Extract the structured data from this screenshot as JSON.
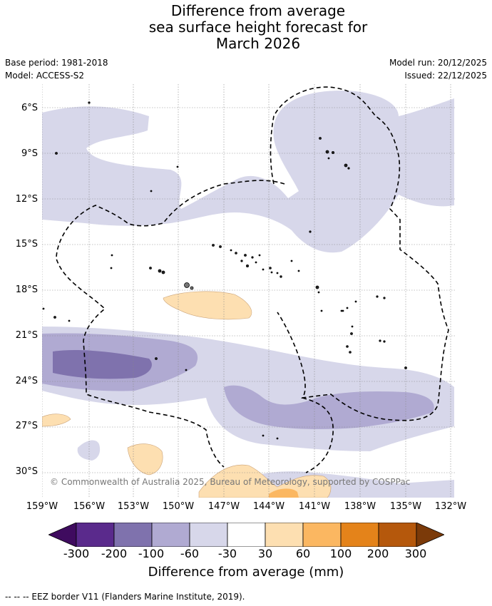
{
  "title": {
    "line1": "Difference from average",
    "line2": "sea surface height forecast for",
    "line3": "March 2026"
  },
  "meta": {
    "base_period": "Base period: 1981-2018",
    "model": "Model: ACCESS-S2",
    "model_run": "Model run: 20/12/2025",
    "issued": "Issued: 22/12/2025"
  },
  "map": {
    "lat_ticks": [
      "6°S",
      "9°S",
      "12°S",
      "15°S",
      "18°S",
      "21°S",
      "24°S",
      "27°S",
      "30°S"
    ],
    "lon_ticks": [
      "159°W",
      "156°W",
      "153°W",
      "150°W",
      "147°W",
      "144°W",
      "141°W",
      "138°W",
      "135°W",
      "132°W"
    ],
    "copyright": "© Commonwealth of Australia 2025, Bureau of Meteorology, supported by COSPPac"
  },
  "colorbar": {
    "title": "Difference from average (mm)",
    "labels": [
      "-300",
      "-200",
      "-100",
      "-60",
      "-30",
      "30",
      "60",
      "100",
      "200",
      "300"
    ],
    "colors": [
      "#3f0b5f",
      "#5a2a8c",
      "#7f72ad",
      "#b0aad2",
      "#d7d7ea",
      "#ffffff",
      "#fddfb1",
      "#fbb761",
      "#e4831a",
      "#b5580c",
      "#7b3a09"
    ]
  },
  "legend_note": "--  --  -- EEZ border V11 (Flanders Marine Institute, 2019)."
}
